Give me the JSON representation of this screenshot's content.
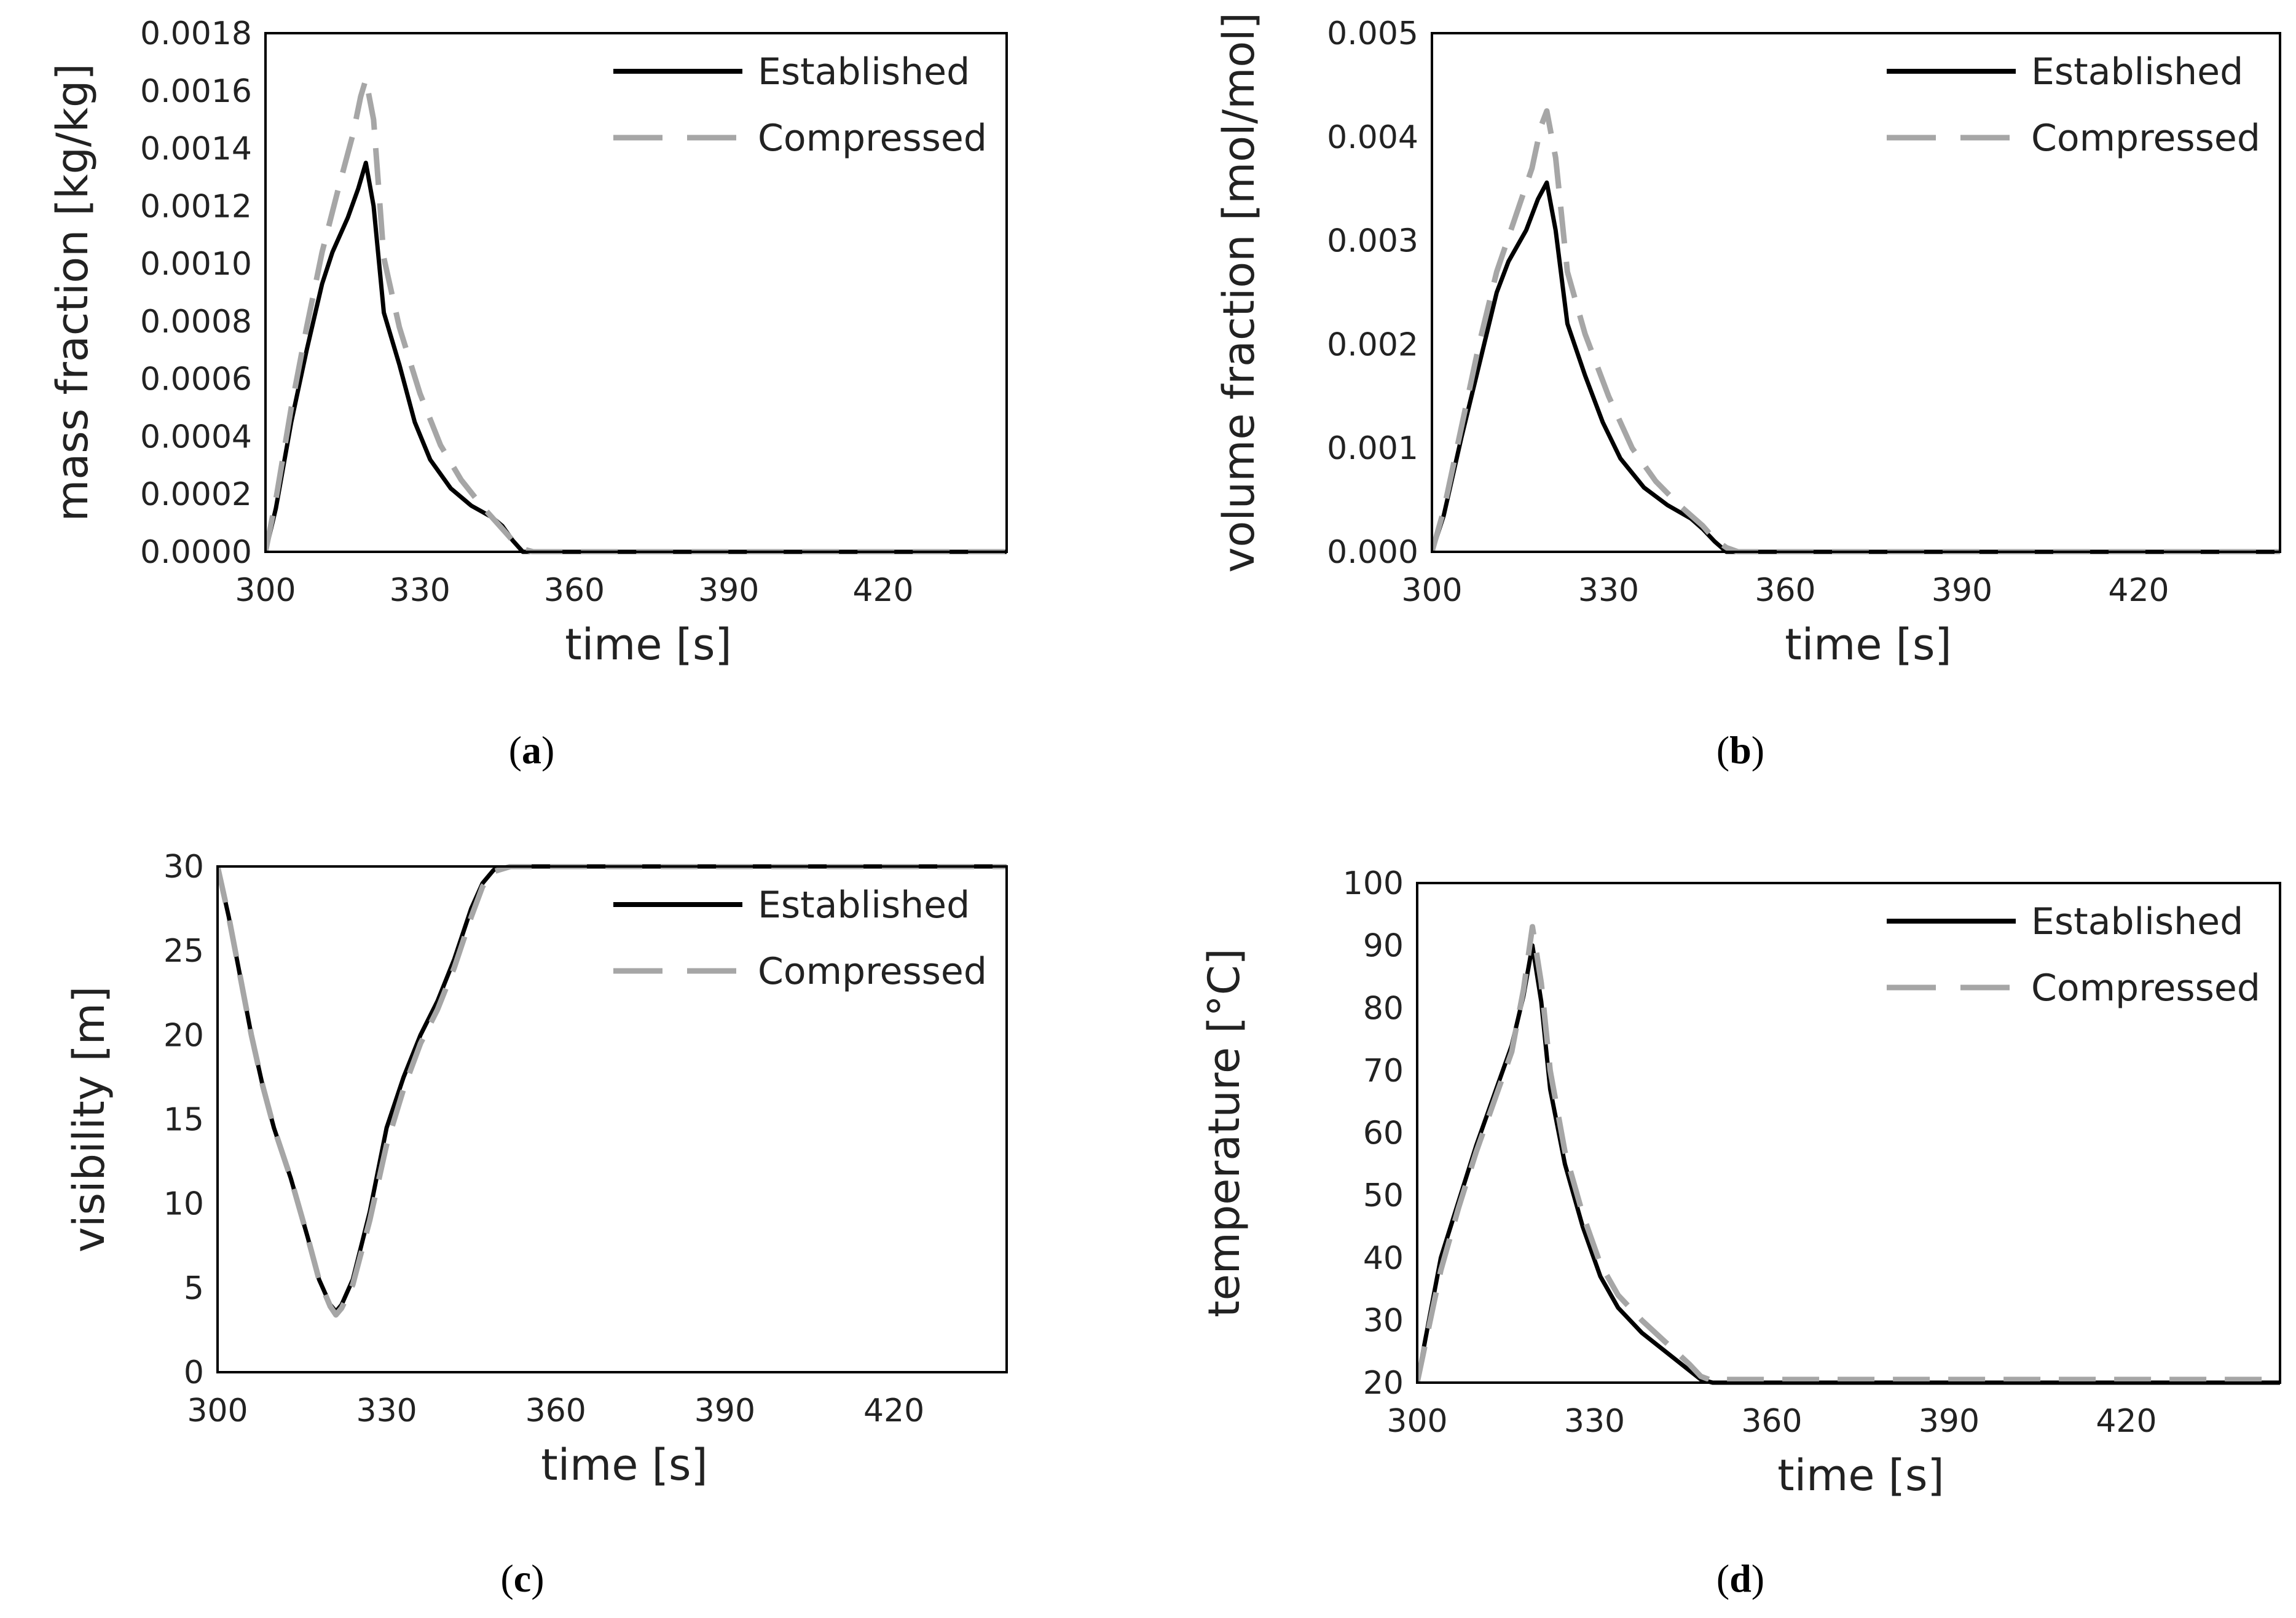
{
  "colors": {
    "established": "#000000",
    "compressed": "#a6a6a6",
    "axis": "#000000",
    "text": "#222222"
  },
  "chart_data": [
    {
      "type": "line",
      "caption": "a",
      "title": "",
      "xlabel": "time [s]",
      "ylabel": "mass fraction [kg/kg]",
      "xlim": [
        300,
        444
      ],
      "ylim": [
        0,
        0.0018
      ],
      "xticks": [
        300,
        330,
        360,
        390,
        420
      ],
      "yticks": [
        "0.0000",
        "0.0002",
        "0.0004",
        "0.0006",
        "0.0008",
        "0.0010",
        "0.0012",
        "0.0014",
        "0.0016",
        "0.0018"
      ],
      "grid": false,
      "legend_position": "top-right",
      "series": [
        {
          "name": "Established",
          "style": "solid",
          "x": [
            300,
            302,
            305,
            308,
            311,
            313,
            316,
            318,
            319.5,
            321,
            323,
            326,
            329,
            332,
            336,
            340,
            344,
            346,
            348,
            350,
            355,
            444
          ],
          "y": [
            0,
            0.00015,
            0.00045,
            0.0007,
            0.00093,
            0.00104,
            0.00116,
            0.00126,
            0.00135,
            0.0012,
            0.00083,
            0.00065,
            0.00045,
            0.00032,
            0.00022,
            0.00016,
            0.00012,
            9e-05,
            4e-05,
            0.0,
            0.0,
            0.0
          ]
        },
        {
          "name": "Compressed",
          "style": "dashed",
          "x": [
            300,
            302,
            305,
            308,
            311,
            314,
            317,
            318.5,
            319.5,
            321,
            323,
            326,
            330,
            334,
            338,
            342,
            346,
            348,
            350,
            352,
            444
          ],
          "y": [
            0,
            0.00018,
            0.0005,
            0.00078,
            0.00104,
            0.00125,
            0.00145,
            0.00158,
            0.00164,
            0.0015,
            0.00102,
            0.00078,
            0.00055,
            0.00037,
            0.00025,
            0.00016,
            8e-05,
            4e-05,
            1e-05,
            0.0,
            0.0
          ]
        }
      ]
    },
    {
      "type": "line",
      "caption": "b",
      "title": "",
      "xlabel": "time [s]",
      "ylabel": "volume fraction [mol/mol]",
      "xlim": [
        300,
        444
      ],
      "ylim": [
        0,
        0.005
      ],
      "xticks": [
        300,
        330,
        360,
        390,
        420
      ],
      "yticks": [
        "0.000",
        "0.001",
        "0.002",
        "0.003",
        "0.004",
        "0.005"
      ],
      "grid": false,
      "legend_position": "top-right",
      "series": [
        {
          "name": "Established",
          "style": "solid",
          "x": [
            300,
            302,
            305,
            308,
            311,
            313,
            316,
            318,
            319.5,
            321,
            323,
            326,
            329,
            332,
            336,
            340,
            344,
            346,
            348,
            350,
            444
          ],
          "y": [
            0,
            0.00035,
            0.0011,
            0.0018,
            0.0025,
            0.0028,
            0.0031,
            0.0034,
            0.00356,
            0.0031,
            0.0022,
            0.0017,
            0.00125,
            0.0009,
            0.00062,
            0.00045,
            0.00032,
            0.00022,
            0.0001,
            0.0,
            0.0
          ]
        },
        {
          "name": "Compressed",
          "style": "dashed",
          "x": [
            300,
            302,
            305,
            308,
            311,
            314,
            317,
            318.5,
            319.5,
            321,
            323,
            326,
            330,
            334,
            338,
            342,
            346,
            348,
            350,
            352,
            444
          ],
          "y": [
            0,
            0.0004,
            0.0012,
            0.002,
            0.0027,
            0.0032,
            0.0037,
            0.0041,
            0.00425,
            0.0038,
            0.0027,
            0.0021,
            0.0015,
            0.001,
            0.00068,
            0.00045,
            0.00025,
            0.00012,
            4e-05,
            0.0,
            0.0
          ]
        }
      ]
    },
    {
      "type": "line",
      "caption": "c",
      "title": "",
      "xlabel": "time [s]",
      "ylabel": "visibility [m]",
      "xlim": [
        300,
        440
      ],
      "ylim": [
        0,
        30
      ],
      "xticks": [
        300,
        330,
        360,
        390,
        420
      ],
      "yticks": [
        "0",
        "5",
        "10",
        "15",
        "20",
        "25",
        "30"
      ],
      "grid": false,
      "legend_position": "top-right",
      "series": [
        {
          "name": "Established",
          "style": "solid",
          "x": [
            300,
            302,
            304,
            306,
            308,
            310,
            313,
            316,
            318,
            320,
            321,
            322,
            324,
            327,
            330,
            333,
            336,
            339,
            342,
            345,
            347,
            349,
            352,
            440
          ],
          "y": [
            30,
            27,
            23.5,
            20,
            17,
            14.5,
            11.5,
            8,
            5.5,
            4,
            3.6,
            4,
            5.5,
            9.5,
            14.5,
            17.5,
            20,
            22,
            24.5,
            27.5,
            29,
            29.8,
            30,
            30
          ]
        },
        {
          "name": "Compressed",
          "style": "dashed",
          "x": [
            300,
            302,
            304,
            306,
            308,
            310,
            313,
            316,
            318,
            320,
            321,
            322,
            324,
            327,
            330,
            333,
            336,
            339,
            342,
            345,
            347,
            349,
            352,
            440
          ],
          "y": [
            30,
            27,
            23.5,
            20,
            17,
            14.5,
            11.5,
            8,
            5.5,
            3.9,
            3.4,
            3.8,
            5.2,
            9,
            13.5,
            16.8,
            19.5,
            21.5,
            24,
            27,
            28.8,
            29.7,
            30,
            30
          ]
        }
      ]
    },
    {
      "type": "line",
      "caption": "d",
      "title": "",
      "xlabel": "time [s]",
      "ylabel": "temperature [°C]",
      "xlim": [
        300,
        446
      ],
      "ylim": [
        20,
        100
      ],
      "xticks": [
        300,
        330,
        360,
        390,
        420
      ],
      "yticks": [
        "20",
        "30",
        "40",
        "50",
        "60",
        "70",
        "80",
        "90",
        "100"
      ],
      "grid": false,
      "legend_position": "top-right",
      "series": [
        {
          "name": "Established",
          "style": "solid",
          "x": [
            300,
            302,
            304,
            307,
            310,
            313,
            316,
            318,
            319.5,
            321,
            322.5,
            325,
            328,
            331,
            334,
            338,
            342,
            346,
            348,
            350,
            446
          ],
          "y": [
            20,
            30,
            40,
            49,
            58,
            66,
            74,
            82,
            90,
            81,
            67,
            55,
            45,
            37,
            32,
            28,
            25,
            22,
            20.5,
            20,
            20
          ]
        },
        {
          "name": "Compressed",
          "style": "dashed",
          "x": [
            300,
            302,
            304,
            307,
            310,
            313,
            316,
            318,
            319.5,
            321,
            322.5,
            325,
            328,
            331,
            334,
            338,
            342,
            346,
            348,
            350,
            352,
            446
          ],
          "y": [
            20,
            29,
            38,
            48,
            57,
            65,
            73,
            83,
            93,
            84,
            70,
            57,
            47,
            39,
            34,
            30,
            26.5,
            23,
            21,
            20.3,
            20.5,
            20.5
          ]
        }
      ]
    }
  ]
}
